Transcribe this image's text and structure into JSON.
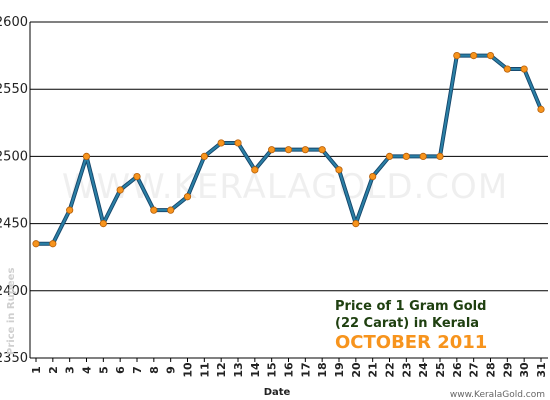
{
  "chart_data": {
    "type": "line",
    "title_lines": [
      "Price of 1 Gram Gold",
      "(22 Carat) in Kerala",
      "OCTOBER 2011"
    ],
    "xlabel": "Date",
    "ylabel": "Price in Rupees",
    "watermark": "WWW.KERALAGOLD.COM",
    "credit": "www.KeralaGold.com",
    "ylim": [
      2350,
      2600
    ],
    "yticks": [
      2350,
      2400,
      2450,
      2500,
      2550,
      2600
    ],
    "x": [
      1,
      2,
      3,
      4,
      5,
      6,
      7,
      8,
      9,
      10,
      11,
      12,
      13,
      14,
      15,
      16,
      17,
      18,
      19,
      20,
      21,
      22,
      23,
      24,
      25,
      26,
      27,
      28,
      29,
      30,
      31
    ],
    "series": [
      {
        "values": [
          2435,
          2435,
          2460,
          2500,
          2450,
          2475,
          2485,
          2460,
          2460,
          2470,
          2500,
          2510,
          2510,
          2490,
          2505,
          2505,
          2505,
          2505,
          2490,
          2450,
          2485,
          2500,
          2500,
          2500,
          2500,
          2575,
          2575,
          2575,
          2565,
          2565,
          2535
        ]
      }
    ],
    "grid": true,
    "line_color": "#2a7fa5",
    "marker_color": "#f7941d",
    "grid_color": "#000000"
  }
}
